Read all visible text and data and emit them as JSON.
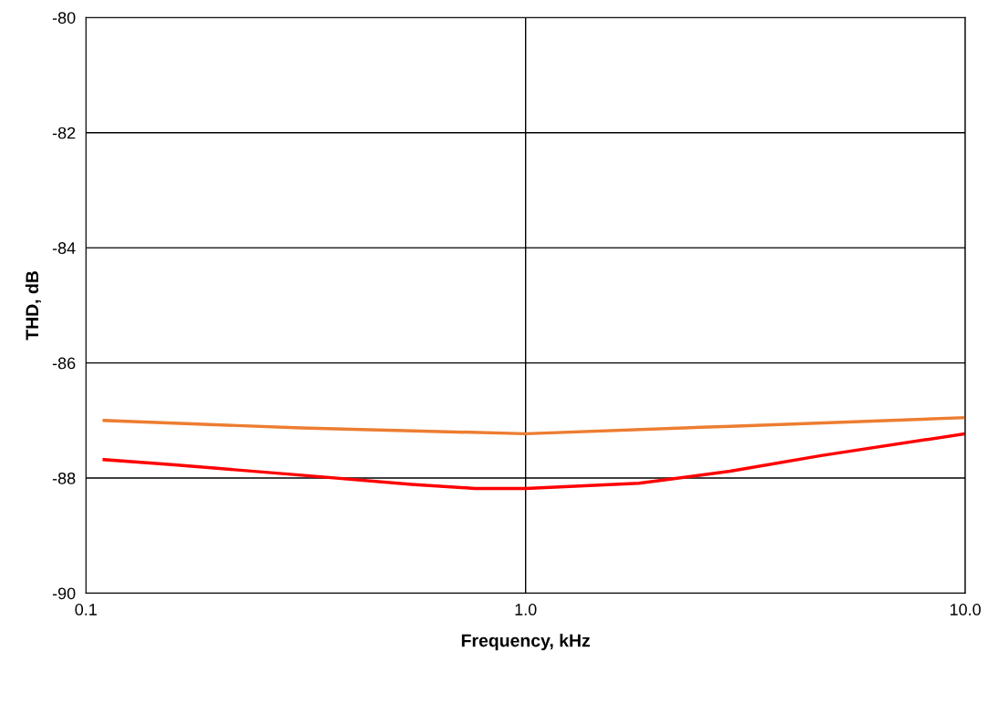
{
  "chart_data": {
    "type": "line",
    "xlabel": "Frequency, kHz",
    "ylabel": "THD, dB",
    "log": "x",
    "xlim": [
      0.1,
      10
    ],
    "xticks": [
      {
        "value": 0.1,
        "label": "0.1"
      },
      {
        "value": 1,
        "label": "1.0"
      },
      {
        "value": 10,
        "label": "10.0"
      }
    ],
    "ylim": [
      -90,
      -80
    ],
    "yticks": [
      -90,
      -88,
      -86,
      -84,
      -82,
      -80
    ],
    "grid": true,
    "marker": "none",
    "line_style": "solid",
    "series": [
      {
        "color": "#ff0000",
        "x": [
          0.11,
          0.159,
          0.309,
          0.55,
          0.766,
          1.0,
          1.81,
          2.92,
          4.7,
          10
        ],
        "values": [
          -87.68,
          -87.77,
          -87.95,
          -88.11,
          -88.18,
          -88.18,
          -88.09,
          -87.88,
          -87.61,
          -87.23
        ]
      },
      {
        "color": "#ed7d31",
        "x": [
          0.11,
          0.309,
          1.0,
          2.92,
          10
        ],
        "values": [
          -87.0,
          -87.13,
          -87.23,
          -87.1,
          -86.95
        ]
      }
    ]
  }
}
